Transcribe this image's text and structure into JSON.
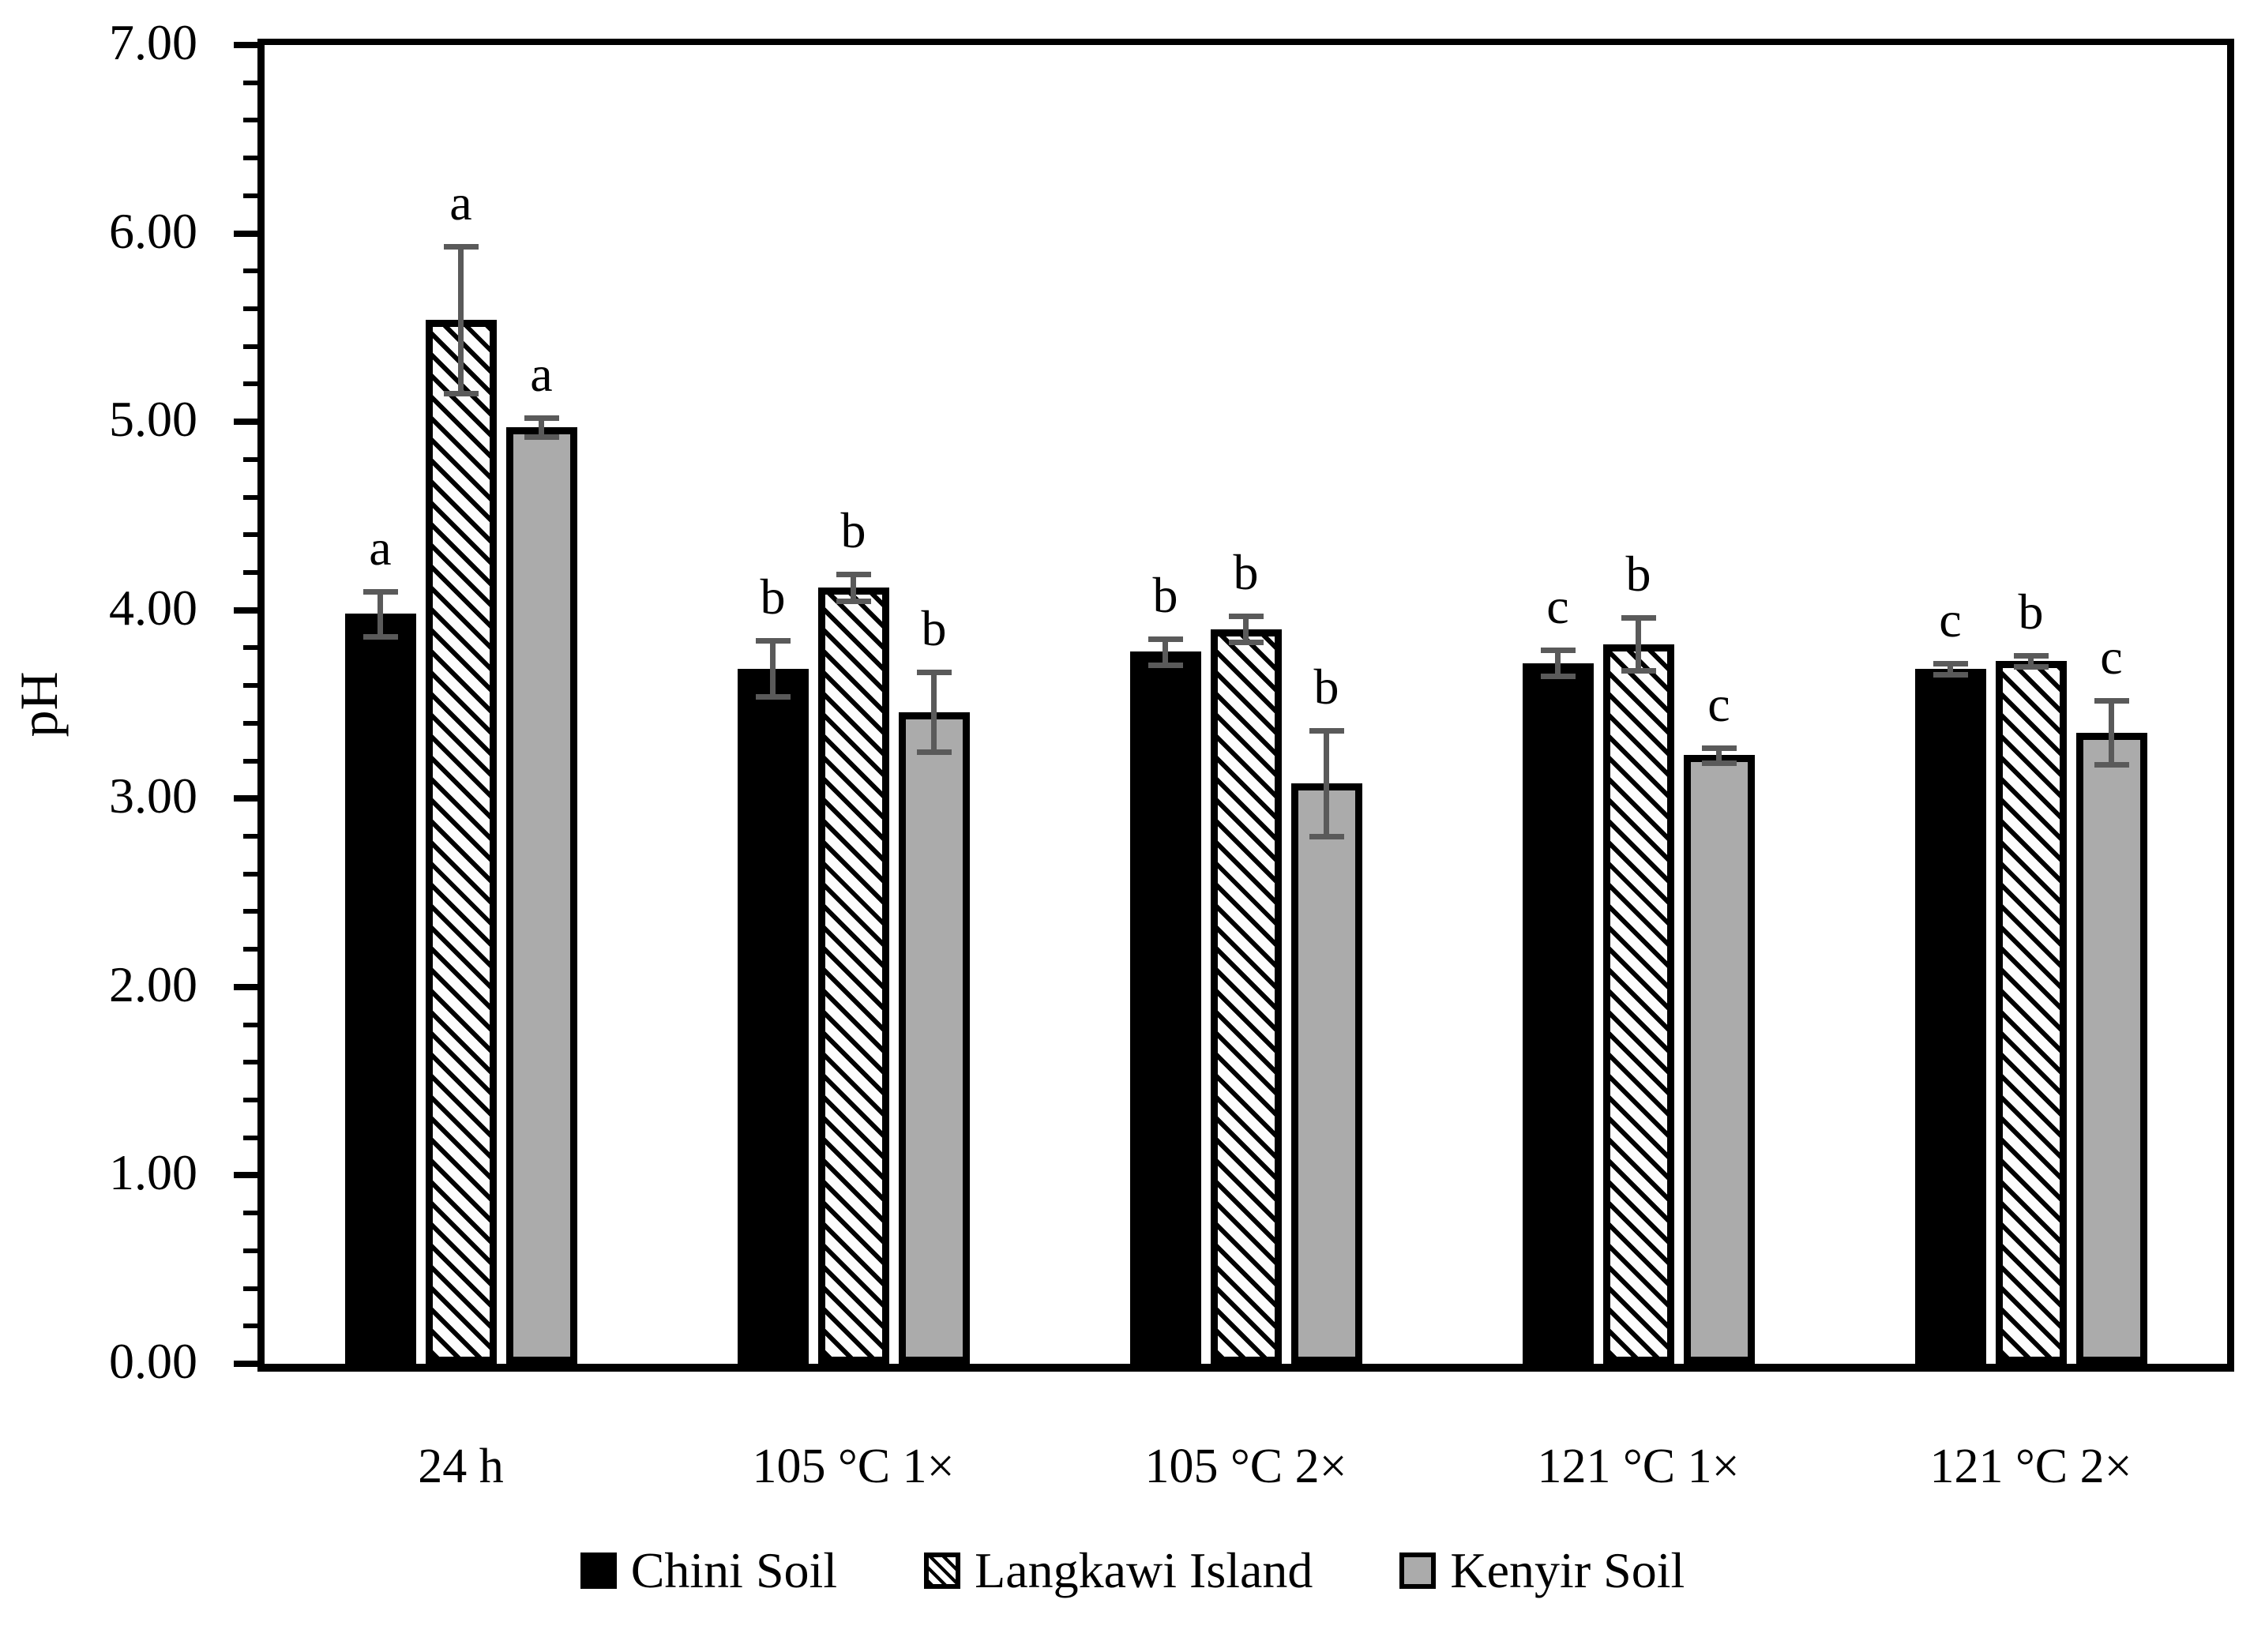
{
  "figure": {
    "background": "#ffffff"
  },
  "chart_data": {
    "type": "bar",
    "title": "",
    "xlabel": "",
    "ylabel": "pH",
    "ylim": [
      0,
      7
    ],
    "y_major_step": 1,
    "y_minor_step": 0.2,
    "y_tick_labels": [
      "7.00",
      "6.00",
      "5.00",
      "4.00",
      "3.00",
      "2.00",
      "1.00",
      "0.00"
    ],
    "grid": "off",
    "legend_position": "bottom-center",
    "categories": [
      "24 h",
      "105 °C 1×",
      "105 °C 2×",
      "121 °C 1×",
      "121 °C 2×"
    ],
    "series": [
      {
        "name": "Chini Soil",
        "style": "solid-black",
        "fill": "#000000",
        "values": [
          3.98,
          3.69,
          3.78,
          3.72,
          3.69
        ],
        "errors": [
          0.12,
          0.15,
          0.07,
          0.07,
          0.03
        ],
        "sig_letters": [
          "a",
          "b",
          "b",
          "c",
          "c"
        ]
      },
      {
        "name": "Langkawi Island",
        "style": "diagonal-hatch",
        "fill": "#ffffff",
        "values": [
          5.54,
          4.12,
          3.9,
          3.82,
          3.73
        ],
        "errors": [
          0.39,
          0.07,
          0.07,
          0.14,
          0.03
        ],
        "sig_letters": [
          "a",
          "b",
          "b",
          "b",
          "b"
        ]
      },
      {
        "name": "Kenyir Soil",
        "style": "solid-gray",
        "fill": "#ababab",
        "values": [
          4.97,
          3.46,
          3.08,
          3.23,
          3.35
        ],
        "errors": [
          0.05,
          0.21,
          0.28,
          0.04,
          0.17
        ],
        "sig_letters": [
          "a",
          "b",
          "b",
          "c",
          "c"
        ]
      }
    ],
    "error_bar_color": "#5a5a5a",
    "bar_border_color": "#000000"
  }
}
